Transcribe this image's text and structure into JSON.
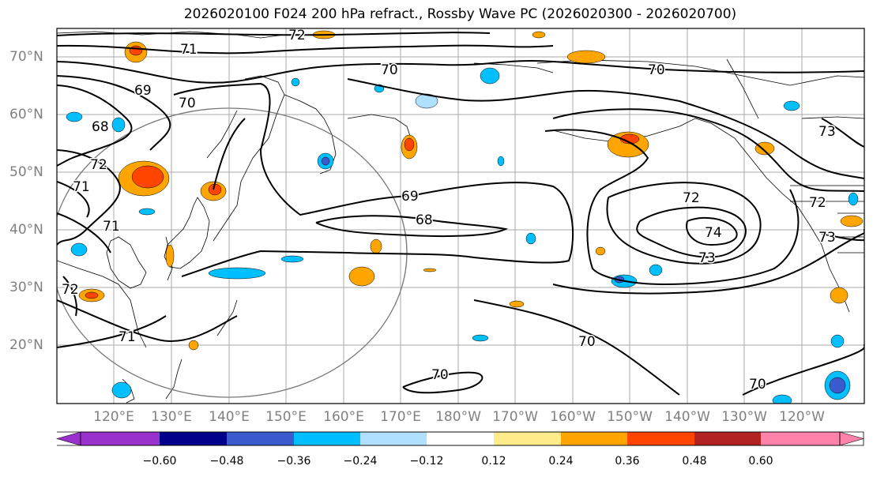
{
  "title": "2026020100 F024 200 hPa refract., Rossby Wave PC (2026020300 - 2026020700)",
  "lat_labels": [
    "70°N",
    "60°N",
    "50°N",
    "40°N",
    "30°N",
    "20°N"
  ],
  "lon_labels": [
    "120°E",
    "130°E",
    "140°E",
    "150°E",
    "160°E",
    "170°E",
    "180°W",
    "170°W",
    "160°W",
    "150°W",
    "140°W",
    "130°W",
    "120°W"
  ],
  "contour_labels": [
    "72",
    "71",
    "70",
    "69",
    "70",
    "68",
    "72",
    "71",
    "69",
    "68",
    "71",
    "70",
    "73",
    "72",
    "74",
    "73",
    "72",
    "73",
    "72",
    "71",
    "70",
    "70",
    "70"
  ],
  "colorbar": {
    "ticks": [
      "−0.60",
      "−0.48",
      "−0.36",
      "−0.24",
      "−0.12",
      "0.12",
      "0.24",
      "0.36",
      "0.48",
      "0.60"
    ],
    "colors": [
      "#9932cc",
      "#00008b",
      "#3a5bcd",
      "#00bfff",
      "#b0e0ff",
      "#ffffff",
      "#ffeb8a",
      "#ffa500",
      "#ff4500",
      "#b22222",
      "#ff82ab"
    ]
  },
  "fill_colors": {
    "orange": "#ffa500",
    "red": "#ff4500",
    "yellow": "#ffeb8a",
    "sky": "#00bfff",
    "lightblue": "#b0e0ff",
    "blue": "#3a5bcd"
  }
}
